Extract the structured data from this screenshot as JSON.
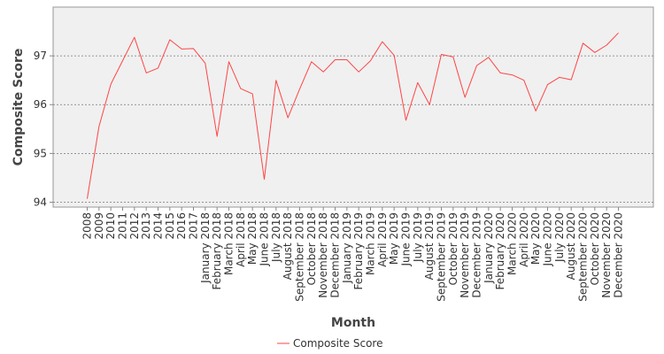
{
  "chart_data": {
    "type": "line",
    "xlabel": "Month",
    "ylabel": "Composite Score",
    "ylim": [
      93.9,
      98.0
    ],
    "yticks": [
      94,
      95,
      96,
      97
    ],
    "grid": "horizontal dotted",
    "legend_position": "bottom",
    "colors": {
      "series": "#ff4444",
      "plot_bg": "#f0f0f0",
      "grid": "#777777"
    },
    "categories": [
      "2008",
      "2009",
      "2010",
      "2011",
      "2012",
      "2013",
      "2014",
      "2015",
      "2016",
      "2017",
      "January 2018",
      "February 2018",
      "March 2018",
      "April 2018",
      "May 2018",
      "June 2018",
      "July 2018",
      "August 2018",
      "September 2018",
      "October 2018",
      "November 2018",
      "December 2018",
      "January 2019",
      "February 2019",
      "March 2019",
      "April 2019",
      "May 2019",
      "June 2019",
      "July 2019",
      "August 2019",
      "September 2019",
      "October 2019",
      "November 2019",
      "December 2019",
      "January 2020",
      "February 2020",
      "March 2020",
      "April 2020",
      "May 2020",
      "June 2020",
      "July 2020",
      "August 2020",
      "September 2020",
      "October 2020",
      "November 2020",
      "December 2020"
    ],
    "series": [
      {
        "name": "Composite Score",
        "values": [
          94.07,
          95.55,
          96.42,
          96.9,
          97.38,
          96.65,
          96.75,
          97.33,
          97.14,
          97.15,
          96.85,
          95.35,
          96.88,
          96.33,
          96.22,
          94.47,
          96.5,
          95.73,
          96.32,
          96.88,
          96.67,
          96.92,
          96.92,
          96.67,
          96.9,
          97.29,
          97.01,
          95.68,
          96.45,
          96.0,
          97.03,
          96.98,
          96.15,
          96.8,
          96.97,
          96.65,
          96.61,
          96.5,
          95.87,
          96.41,
          96.56,
          96.51,
          97.26,
          97.07,
          97.22,
          97.47
        ]
      }
    ]
  }
}
